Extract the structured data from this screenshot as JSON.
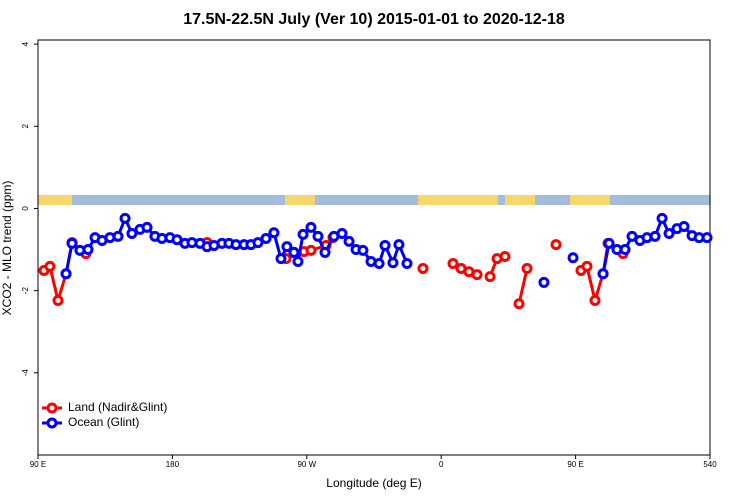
{
  "chart_data": {
    "type": "line",
    "title": "17.5N-22.5N July (Ver 10)   2015-01-01 to 2020-12-18",
    "x_label": "Longitude (deg E)",
    "y_label": "XCO2 - MLO trend (ppm)",
    "xlim": [
      90,
      540
    ],
    "ylim": [
      -6,
      4.1
    ],
    "xticks": [
      {
        "value": 90,
        "label": "90 E"
      },
      180,
      {
        "value": 270,
        "label": "90 W"
      },
      {
        "value": 360,
        "label": "0"
      },
      {
        "value": 450,
        "label": "90 E"
      },
      540
    ],
    "yticks": [
      -4,
      -2,
      0,
      2,
      4
    ],
    "legend": "bottomleft",
    "series": [
      {
        "name": "Land (Nadir&Glint)",
        "color": "#ff0000",
        "x": [
          94.0,
          98.0,
          103.4,
          108.8,
          112.8,
          122.1,
          130,
          203.2,
          240,
          256.1,
          261.4,
          268.1,
          272.8,
          282.9,
          287.5,
          340,
          347.8,
          360,
          367.9,
          373.3,
          378.6,
          384.0,
          387,
          392.7,
          397.4,
          402.7,
          406,
          412.1,
          417.5,
          420,
          436.9,
          450,
          453.6,
          457.6,
          463.0,
          468.4,
          471.7,
          481.8
        ],
        "values": [
          -1.51,
          -1.41,
          -2.24,
          -1.59,
          -0.83,
          -1.1,
          null,
          -0.83,
          null,
          -1.22,
          -1.07,
          -1.05,
          -1.02,
          -0.9,
          -0.71,
          null,
          -1.46,
          null,
          -1.34,
          -1.46,
          -1.54,
          -1.61,
          null,
          -1.66,
          -1.22,
          -1.17,
          null,
          -2.32,
          -1.46,
          null,
          -0.88,
          null,
          -1.51,
          -1.41,
          -2.24,
          -1.59,
          -0.85,
          -1.1
        ]
      },
      {
        "name": "Ocean (Glint)",
        "color": "#0000ff",
        "x": [
          108.8,
          112.8,
          118.1,
          123.5,
          128.2,
          132.9,
          138.2,
          143.6,
          148.3,
          152.9,
          158.3,
          163.0,
          168.3,
          173.0,
          178.4,
          183.1,
          188.4,
          193.1,
          198.5,
          203.2,
          207.9,
          213.2,
          217.9,
          222.6,
          228.0,
          232.6,
          237.3,
          242.7,
          248.0,
          252.7,
          256.7,
          261.4,
          264.1,
          267.5,
          272.8,
          277.5,
          282.2,
          288.2,
          293.6,
          298.3,
          303.0,
          307.6,
          313.0,
          318.4,
          322.4,
          327.7,
          331.7,
          337.1,
          350,
          428.8,
          440,
          448.3,
          460,
          468.4,
          472.4,
          477.7,
          483.1,
          487.8,
          493.1,
          497.8,
          503.2,
          507.9,
          512.6,
          517.9,
          522.6,
          528.0,
          532.7,
          538.0
        ],
        "values": [
          -1.59,
          -0.85,
          -1.02,
          -1.0,
          -0.71,
          -0.78,
          -0.71,
          -0.68,
          -0.24,
          -0.61,
          -0.51,
          -0.46,
          -0.68,
          -0.73,
          -0.71,
          -0.76,
          -0.85,
          -0.83,
          -0.85,
          -0.93,
          -0.9,
          -0.85,
          -0.85,
          -0.88,
          -0.88,
          -0.88,
          -0.83,
          -0.73,
          -0.59,
          -1.22,
          -0.93,
          -1.07,
          -1.29,
          -0.63,
          -0.46,
          -0.68,
          -1.07,
          -0.68,
          -0.61,
          -0.8,
          -1.0,
          -1.02,
          -1.29,
          -1.34,
          -0.9,
          -1.32,
          -0.88,
          -1.34,
          null,
          -1.8,
          null,
          -1.2,
          null,
          -1.59,
          -0.85,
          -1.0,
          -1.0,
          -0.68,
          -0.78,
          -0.71,
          -0.68,
          -0.24,
          -0.61,
          -0.49,
          -0.44,
          -0.66,
          -0.71,
          -0.71
        ]
      }
    ]
  }
}
